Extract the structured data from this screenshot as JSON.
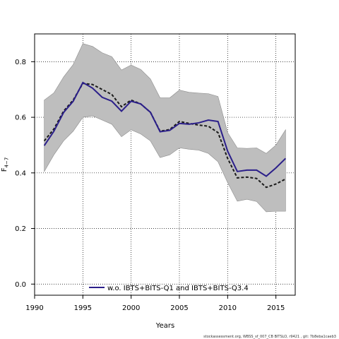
{
  "chart_data": {
    "type": "line",
    "xlabel": "Years",
    "ylabel": "F",
    "ylabel_sub": "4−7",
    "xlim": [
      1990,
      2017
    ],
    "ylim": [
      -0.04,
      0.9
    ],
    "xticks": [
      1990,
      1995,
      2000,
      2005,
      2010,
      2015
    ],
    "yticks": [
      0.0,
      0.2,
      0.4,
      0.6,
      0.8
    ],
    "xtick_labels": [
      "1990",
      "1995",
      "2000",
      "2005",
      "2010",
      "2015"
    ],
    "ytick_labels": [
      "0.0",
      "0.2",
      "0.4",
      "0.6",
      "0.8"
    ],
    "grid": true,
    "legend_position": "bottom-center",
    "colors": {
      "band": "#bebebe",
      "series": "#2b1f8a",
      "baseline": "#1a1a1a"
    },
    "x": [
      1991,
      1992,
      1993,
      1994,
      1995,
      1996,
      1997,
      1998,
      1999,
      2000,
      2001,
      2002,
      2003,
      2004,
      2005,
      2006,
      2007,
      2008,
      2009,
      2010,
      2011,
      2012,
      2013,
      2014,
      2015,
      2016
    ],
    "band": {
      "lower": [
        0.405,
        0.465,
        0.515,
        0.55,
        0.6,
        0.605,
        0.59,
        0.575,
        0.53,
        0.555,
        0.54,
        0.515,
        0.455,
        0.465,
        0.49,
        0.485,
        0.482,
        0.47,
        0.44,
        0.365,
        0.298,
        0.305,
        0.297,
        0.26,
        0.262,
        0.262
      ],
      "upper": [
        0.662,
        0.688,
        0.745,
        0.79,
        0.865,
        0.855,
        0.832,
        0.818,
        0.77,
        0.788,
        0.772,
        0.738,
        0.67,
        0.67,
        0.698,
        0.69,
        0.687,
        0.685,
        0.675,
        0.545,
        0.49,
        0.488,
        0.49,
        0.47,
        0.5,
        0.555
      ]
    },
    "series": [
      {
        "name": "w.o. IBTS+BITS-Q1 and IBTS+BITS-Q3.4",
        "style": "solid",
        "values": [
          0.498,
          0.55,
          0.617,
          0.658,
          0.725,
          0.705,
          0.672,
          0.658,
          0.622,
          0.658,
          0.648,
          0.618,
          0.548,
          0.553,
          0.578,
          0.575,
          0.58,
          0.59,
          0.585,
          0.478,
          0.405,
          0.41,
          0.41,
          0.388,
          0.418,
          0.452
        ]
      },
      {
        "style": "dashed",
        "values": [
          0.515,
          0.558,
          0.622,
          0.662,
          0.722,
          0.718,
          0.7,
          0.682,
          0.638,
          0.662,
          0.648,
          0.618,
          0.55,
          0.556,
          0.585,
          0.578,
          0.572,
          0.568,
          0.545,
          0.452,
          0.382,
          0.385,
          0.38,
          0.348,
          0.36,
          0.378
        ]
      }
    ]
  },
  "footer": "stockassessment.org,  WBSS_sf_007_CB BITSLO,  r9421 ,  git: 7b8eba1caeb3"
}
